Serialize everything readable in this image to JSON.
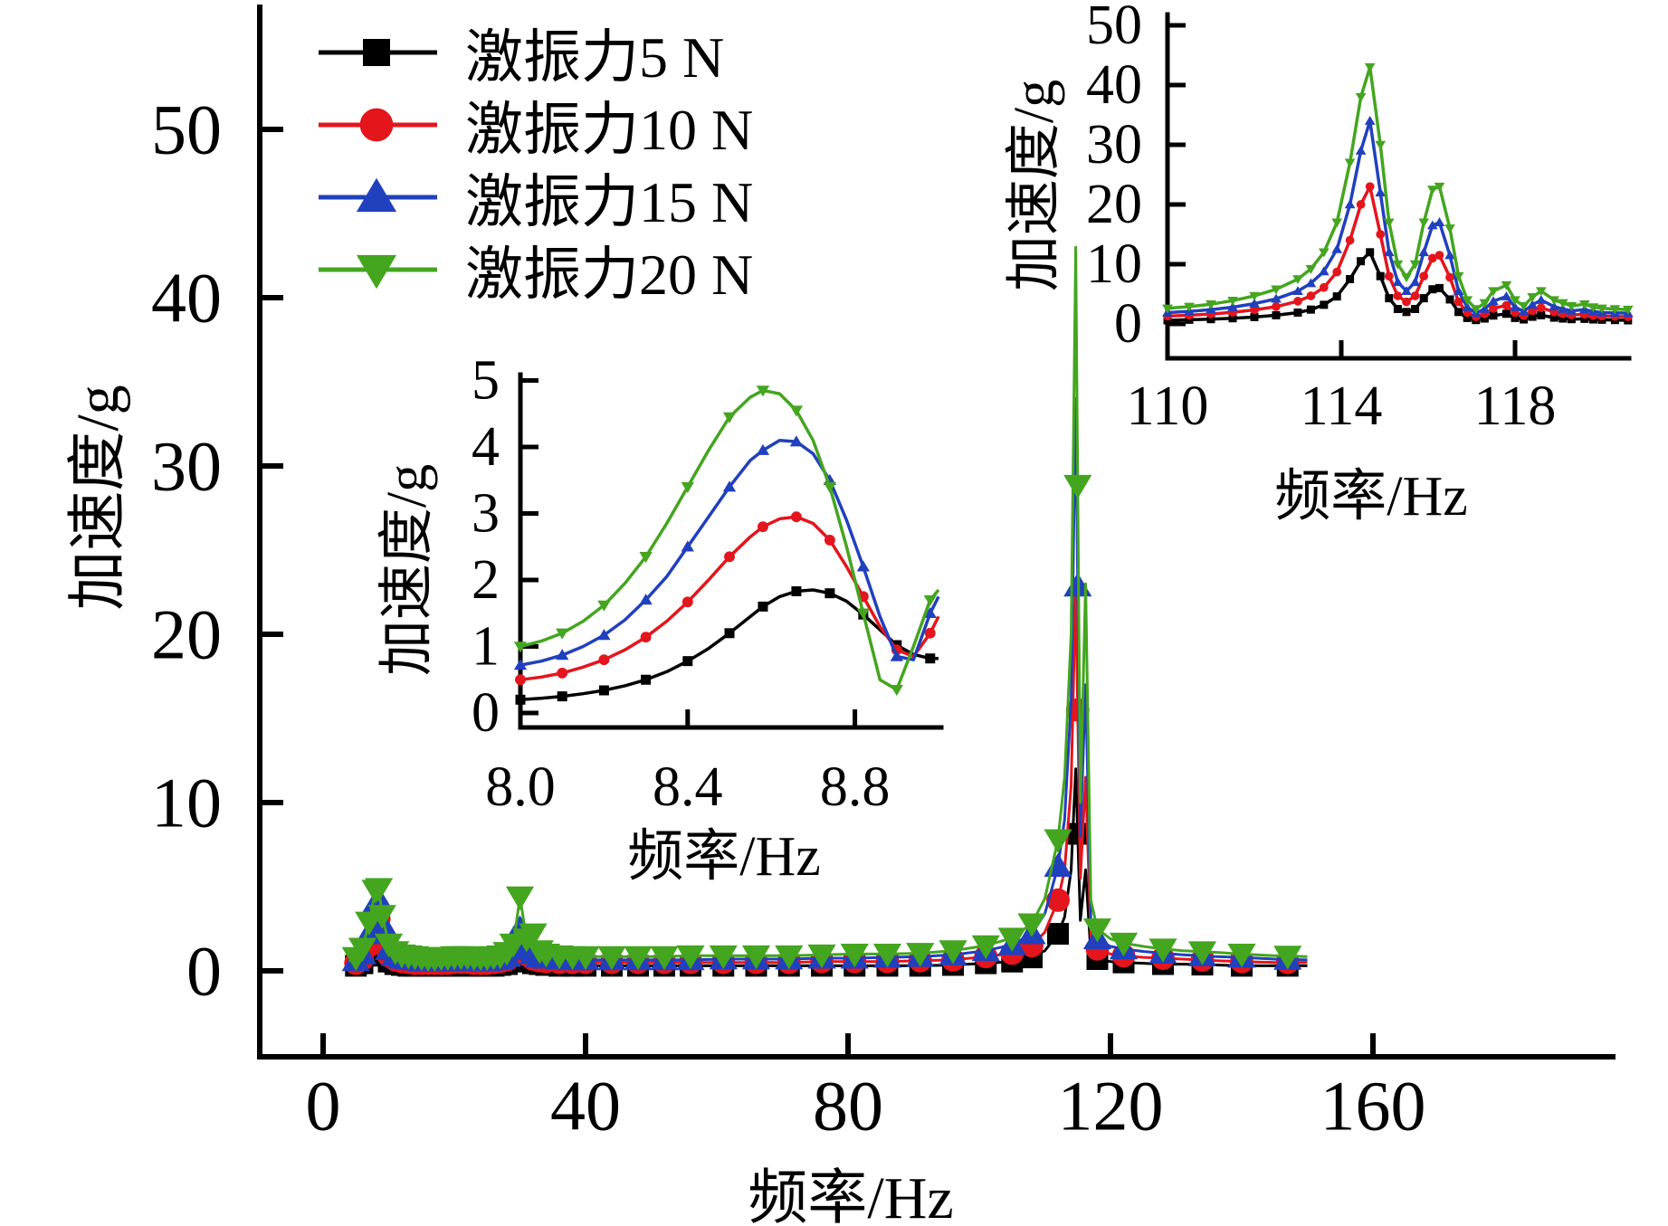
{
  "figure": {
    "background": "#ffffff",
    "axis_color": "#000000",
    "legend": {
      "position": "top-left",
      "items": [
        {
          "label": "激振力5 N",
          "force": "5 N",
          "color": "#000000",
          "marker": "square"
        },
        {
          "label": "激振力10 N",
          "force": "10 N",
          "color": "#e4151c",
          "marker": "circle"
        },
        {
          "label": "激振力15 N",
          "force": "15 N",
          "color": "#2140bd",
          "marker": "triangle-up"
        },
        {
          "label": "激振力20 N",
          "force": "20 N",
          "color": "#44a51f",
          "marker": "triangle-down"
        }
      ]
    }
  },
  "chart_data": [
    {
      "id": "main",
      "type": "line",
      "title": "",
      "xlabel": "频率/Hz",
      "ylabel": "加速度/g",
      "xlim": [
        -10,
        196
      ],
      "ylim": [
        -9.5,
        57.3
      ],
      "grid": false,
      "legend_position": "top-left",
      "xticks": [
        {
          "v": 0,
          "label": "0"
        },
        {
          "v": 40,
          "label": "40"
        },
        {
          "v": 80,
          "label": "80"
        },
        {
          "v": 120,
          "label": "120"
        },
        {
          "v": 160,
          "label": "160"
        }
      ],
      "yticks": [
        {
          "v": 0,
          "label": "0"
        },
        {
          "v": 10,
          "label": "10"
        },
        {
          "v": 20,
          "label": "20"
        },
        {
          "v": 30,
          "label": "30"
        },
        {
          "v": 40,
          "label": "40"
        },
        {
          "v": 50,
          "label": "50"
        }
      ],
      "x": [
        4,
        5,
        6,
        7,
        8,
        8.5,
        9,
        10,
        11,
        12,
        13,
        14,
        15,
        16,
        17,
        18,
        19,
        20,
        21,
        22,
        23,
        24,
        25,
        26,
        27,
        28,
        29,
        30,
        31,
        32,
        33,
        34,
        36,
        38,
        40,
        44,
        48,
        52,
        56,
        61,
        66,
        71,
        76,
        81,
        86,
        91,
        96,
        101,
        105,
        108,
        110,
        112,
        113,
        114,
        114.7,
        115.4,
        116.2,
        117,
        118,
        120,
        122,
        125,
        128,
        131,
        136,
        140,
        145,
        150
      ],
      "marker_x": [
        5,
        6,
        7,
        8,
        8.5,
        9,
        10,
        11,
        12,
        13,
        14,
        15,
        16,
        17,
        18,
        19,
        20,
        21,
        22,
        23,
        24,
        25,
        26,
        27,
        28,
        29,
        30,
        31,
        32,
        33,
        34,
        36,
        38,
        40,
        44,
        48,
        52,
        56,
        61,
        66,
        71,
        76,
        81,
        86,
        91,
        96,
        101,
        105,
        108,
        112,
        115,
        118,
        122,
        128,
        134,
        140,
        147
      ],
      "series": [
        {
          "name": "激振力5 N",
          "color": "#000000",
          "marker": "square",
          "values": [
            0.2,
            0.3,
            0.45,
            0.9,
            1.7,
            1.9,
            1.2,
            0.55,
            0.4,
            0.35,
            0.3,
            0.3,
            0.3,
            0.3,
            0.3,
            0.3,
            0.3,
            0.3,
            0.3,
            0.3,
            0.3,
            0.3,
            0.3,
            0.3,
            0.35,
            0.4,
            0.55,
            1.1,
            0.6,
            0.45,
            0.4,
            0.35,
            0.3,
            0.3,
            0.3,
            0.3,
            0.3,
            0.3,
            0.3,
            0.3,
            0.3,
            0.3,
            0.3,
            0.3,
            0.3,
            0.3,
            0.35,
            0.45,
            0.55,
            0.8,
            1.2,
            2.2,
            3.2,
            6.0,
            12.0,
            3.0,
            6.0,
            1.0,
            0.7,
            0.55,
            0.5,
            0.45,
            0.4,
            0.4,
            0.35,
            0.3,
            0.3,
            0.3
          ]
        },
        {
          "name": "激振力10 N",
          "color": "#e4151c",
          "marker": "circle",
          "values": [
            0.3,
            0.45,
            0.7,
            1.5,
            2.9,
            3.1,
            2.0,
            0.9,
            0.65,
            0.55,
            0.5,
            0.45,
            0.45,
            0.45,
            0.45,
            0.45,
            0.45,
            0.5,
            0.5,
            0.5,
            0.45,
            0.45,
            0.45,
            0.5,
            0.55,
            0.65,
            0.9,
            1.7,
            0.95,
            0.7,
            0.6,
            0.55,
            0.5,
            0.5,
            0.5,
            0.5,
            0.5,
            0.5,
            0.5,
            0.5,
            0.5,
            0.5,
            0.55,
            0.55,
            0.55,
            0.6,
            0.65,
            0.85,
            1.05,
            1.5,
            2.3,
            4.2,
            6.0,
            11.0,
            23.0,
            5.5,
            11.5,
            2.0,
            1.3,
            1.0,
            0.9,
            0.8,
            0.75,
            0.7,
            0.6,
            0.55,
            0.5,
            0.5
          ]
        },
        {
          "name": "激振力15 N",
          "color": "#2140bd",
          "marker": "triangle-up",
          "values": [
            0.4,
            0.6,
            1.0,
            2.2,
            4.0,
            4.2,
            2.8,
            1.25,
            0.9,
            0.75,
            0.7,
            0.65,
            0.6,
            0.6,
            0.6,
            0.6,
            0.6,
            0.65,
            0.65,
            0.65,
            0.6,
            0.6,
            0.6,
            0.65,
            0.7,
            0.85,
            1.25,
            2.5,
            1.4,
            1.0,
            0.8,
            0.75,
            0.7,
            0.65,
            0.65,
            0.65,
            0.65,
            0.65,
            0.65,
            0.7,
            0.7,
            0.7,
            0.75,
            0.75,
            0.8,
            0.85,
            0.95,
            1.2,
            1.55,
            2.2,
            3.4,
            6.2,
            9.0,
            16.0,
            34.0,
            8.0,
            17.0,
            3.0,
            1.9,
            1.45,
            1.3,
            1.15,
            1.05,
            0.95,
            0.85,
            0.8,
            0.7,
            0.65
          ]
        },
        {
          "name": "激振力20 N",
          "color": "#44a51f",
          "marker": "triangle-down",
          "values": [
            0.55,
            0.8,
            1.35,
            2.9,
            4.8,
            4.9,
            3.3,
            1.6,
            1.15,
            0.95,
            0.9,
            0.85,
            0.8,
            0.75,
            0.75,
            0.8,
            0.8,
            0.85,
            0.85,
            0.85,
            0.8,
            0.8,
            0.8,
            0.85,
            0.9,
            1.1,
            1.6,
            4.4,
            1.9,
            2.2,
            1.2,
            1.0,
            0.9,
            0.85,
            0.85,
            0.85,
            0.85,
            0.85,
            0.9,
            0.9,
            0.9,
            0.9,
            0.95,
            1.0,
            1.0,
            1.05,
            1.2,
            1.5,
            1.95,
            2.8,
            4.3,
            7.8,
            11.5,
            20.0,
            43.0,
            10.0,
            23.0,
            4.2,
            2.5,
            1.9,
            1.65,
            1.45,
            1.3,
            1.2,
            1.1,
            1.0,
            0.9,
            0.85
          ]
        }
      ]
    },
    {
      "id": "inset-low",
      "type": "line",
      "title": "",
      "xlabel": "频率/Hz",
      "ylabel": "加速度/g",
      "xlim": [
        8.0,
        9.0
      ],
      "ylim": [
        0,
        5.3
      ],
      "grid": false,
      "xticks": [
        {
          "v": 8.0,
          "label": "8.0"
        },
        {
          "v": 8.4,
          "label": "8.4"
        },
        {
          "v": 8.8,
          "label": "8.8"
        }
      ],
      "yticks": [
        {
          "v": 0,
          "label": "0"
        },
        {
          "v": 1,
          "label": "1"
        },
        {
          "v": 2,
          "label": "2"
        },
        {
          "v": 3,
          "label": "3"
        },
        {
          "v": 4,
          "label": "4"
        },
        {
          "v": 5,
          "label": "5"
        }
      ],
      "x": [
        8.0,
        8.05,
        8.1,
        8.15,
        8.2,
        8.25,
        8.3,
        8.35,
        8.4,
        8.45,
        8.5,
        8.55,
        8.58,
        8.62,
        8.66,
        8.7,
        8.74,
        8.78,
        8.82,
        8.86,
        8.9,
        8.94,
        8.98,
        9.0
      ],
      "series": [
        {
          "name": "激振力5 N",
          "color": "#000000",
          "marker": "square",
          "values": [
            0.2,
            0.22,
            0.25,
            0.29,
            0.34,
            0.41,
            0.5,
            0.62,
            0.78,
            0.97,
            1.2,
            1.45,
            1.6,
            1.75,
            1.83,
            1.85,
            1.8,
            1.68,
            1.48,
            1.25,
            1.02,
            0.88,
            0.82,
            0.82
          ]
        },
        {
          "name": "激振力10 N",
          "color": "#e4151c",
          "marker": "circle",
          "values": [
            0.5,
            0.54,
            0.6,
            0.69,
            0.8,
            0.95,
            1.14,
            1.38,
            1.67,
            2.0,
            2.35,
            2.65,
            2.8,
            2.92,
            2.95,
            2.85,
            2.6,
            2.2,
            1.75,
            1.3,
            0.95,
            0.85,
            1.2,
            1.45
          ]
        },
        {
          "name": "激振力15 N",
          "color": "#2140bd",
          "marker": "triangle-up",
          "values": [
            0.72,
            0.78,
            0.87,
            1.0,
            1.17,
            1.4,
            1.7,
            2.05,
            2.5,
            2.95,
            3.4,
            3.8,
            3.95,
            4.1,
            4.08,
            3.9,
            3.5,
            2.9,
            2.2,
            1.45,
            0.85,
            0.8,
            1.5,
            1.75
          ]
        },
        {
          "name": "激振力20 N",
          "color": "#44a51f",
          "marker": "triangle-down",
          "values": [
            1.0,
            1.08,
            1.2,
            1.38,
            1.62,
            1.95,
            2.35,
            2.85,
            3.4,
            3.95,
            4.45,
            4.75,
            4.85,
            4.8,
            4.55,
            4.1,
            3.4,
            2.5,
            1.5,
            0.5,
            0.35,
            1.0,
            1.7,
            1.85
          ]
        }
      ]
    },
    {
      "id": "inset-resonance",
      "type": "line",
      "title": "",
      "xlabel": "频率/Hz",
      "ylabel": "加速度/g",
      "xlim": [
        110,
        120.7
      ],
      "ylim": [
        -5.8,
        51.5
      ],
      "grid": false,
      "xticks": [
        {
          "v": 110,
          "label": "110"
        },
        {
          "v": 114,
          "label": "114"
        },
        {
          "v": 118,
          "label": "118"
        }
      ],
      "yticks": [
        {
          "v": 0,
          "label": "0"
        },
        {
          "v": 10,
          "label": "10"
        },
        {
          "v": 20,
          "label": "20"
        },
        {
          "v": 30,
          "label": "30"
        },
        {
          "v": 40,
          "label": "40"
        },
        {
          "v": 50,
          "label": "50"
        }
      ],
      "x": [
        110,
        110.5,
        111,
        111.5,
        112,
        112.5,
        113,
        113.3,
        113.6,
        113.9,
        114.2,
        114.45,
        114.66,
        114.9,
        115.1,
        115.3,
        115.5,
        115.7,
        115.9,
        116.1,
        116.26,
        116.5,
        116.7,
        116.9,
        117.1,
        117.3,
        117.5,
        117.8,
        118,
        118.2,
        118.4,
        118.6,
        118.9,
        119.1,
        119.3,
        119.6,
        119.8,
        120,
        120.3,
        120.6
      ],
      "series": [
        {
          "name": "激振力5 N",
          "color": "#000000",
          "marker": "square",
          "values": [
            0.6,
            0.7,
            0.8,
            0.95,
            1.15,
            1.45,
            1.9,
            2.4,
            3.2,
            4.6,
            7.5,
            10.5,
            12,
            8,
            4.3,
            2.5,
            2.0,
            2.5,
            4.3,
            5.8,
            6,
            4.1,
            2.0,
            1.0,
            0.65,
            0.9,
            1.4,
            1.7,
            1.0,
            0.75,
            1.2,
            1.45,
            1.05,
            0.9,
            0.8,
            0.85,
            0.75,
            0.7,
            0.65,
            0.6
          ]
        },
        {
          "name": "激振力10 N",
          "color": "#e4151c",
          "marker": "circle",
          "values": [
            1.3,
            1.45,
            1.65,
            1.95,
            2.35,
            2.9,
            3.8,
            4.7,
            6.1,
            8.7,
            14,
            20,
            23,
            15,
            8,
            4.7,
            3.7,
            4.7,
            8,
            11,
            11.5,
            7.8,
            3.7,
            1.9,
            1.2,
            1.7,
            2.6,
            3.1,
            1.9,
            1.4,
            2.2,
            2.7,
            2.0,
            1.7,
            1.5,
            1.6,
            1.4,
            1.3,
            1.25,
            1.2
          ]
        },
        {
          "name": "激振力15 N",
          "color": "#2140bd",
          "marker": "triangle-up",
          "values": [
            1.9,
            2.1,
            2.4,
            2.8,
            3.4,
            4.2,
            5.5,
            6.8,
            8.8,
            12.5,
            20,
            29,
            34,
            22,
            12,
            7,
            5.5,
            7,
            12,
            16.5,
            17,
            11.5,
            5.5,
            2.8,
            1.8,
            2.5,
            3.8,
            4.6,
            2.8,
            2.1,
            3.2,
            4.0,
            2.9,
            2.5,
            2.2,
            2.4,
            2.1,
            1.9,
            1.85,
            1.8
          ]
        },
        {
          "name": "激振力20 N",
          "color": "#44a51f",
          "marker": "triangle-down",
          "values": [
            2.6,
            2.9,
            3.3,
            3.9,
            4.7,
            5.8,
            7.5,
            9.2,
            12,
            17,
            27,
            38,
            43,
            30,
            17,
            10,
            7.8,
            10,
            17,
            22.5,
            23,
            16,
            8,
            4,
            2.5,
            3.5,
            5.5,
            6.5,
            4,
            3,
            4.5,
            5.5,
            4,
            3.5,
            3,
            3.3,
            2.8,
            2.6,
            2.5,
            2.4
          ]
        }
      ]
    }
  ]
}
